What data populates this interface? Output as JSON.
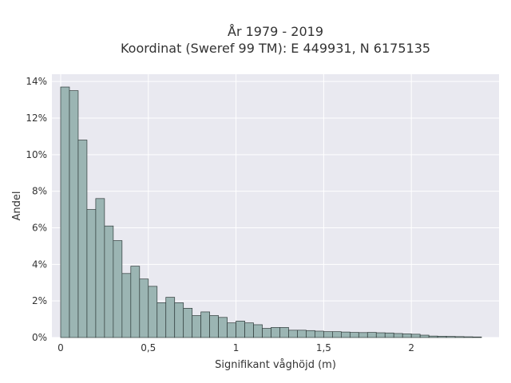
{
  "chart_data": {
    "type": "bar",
    "title": "År 1979 - 2019",
    "subtitle": "Koordinat (Sweref 99 TM): E 449931, N 6175135",
    "xlabel": "Signifikant våghöjd (m)",
    "ylabel": "Andel",
    "xlim": [
      -0.05,
      2.5
    ],
    "ylim": [
      0,
      14.4
    ],
    "x_ticks": [
      0,
      0.5,
      1,
      1.5,
      2
    ],
    "x_tick_labels": [
      "0",
      "0,5",
      "1",
      "1,5",
      "2"
    ],
    "y_ticks": [
      0,
      2,
      4,
      6,
      8,
      10,
      12,
      14
    ],
    "y_tick_labels": [
      "0%",
      "2%",
      "4%",
      "6%",
      "8%",
      "10%",
      "12%",
      "14%"
    ],
    "bin_start": 0.0,
    "bin_width": 0.05,
    "values": [
      13.7,
      13.5,
      10.8,
      7.0,
      7.6,
      6.1,
      5.3,
      3.5,
      3.9,
      3.2,
      2.8,
      1.9,
      2.2,
      1.9,
      1.6,
      1.2,
      1.4,
      1.2,
      1.1,
      0.8,
      0.9,
      0.8,
      0.7,
      0.5,
      0.55,
      0.55,
      0.4,
      0.4,
      0.38,
      0.35,
      0.32,
      0.32,
      0.3,
      0.28,
      0.27,
      0.28,
      0.26,
      0.25,
      0.22,
      0.2,
      0.18,
      0.13,
      0.08,
      0.07,
      0.06,
      0.05,
      0.04,
      0.03
    ],
    "grid": true,
    "plot_background": "#e9e9f0",
    "bar_color": "#9bb5b3",
    "bar_edge_color": "#2f3b3a"
  }
}
